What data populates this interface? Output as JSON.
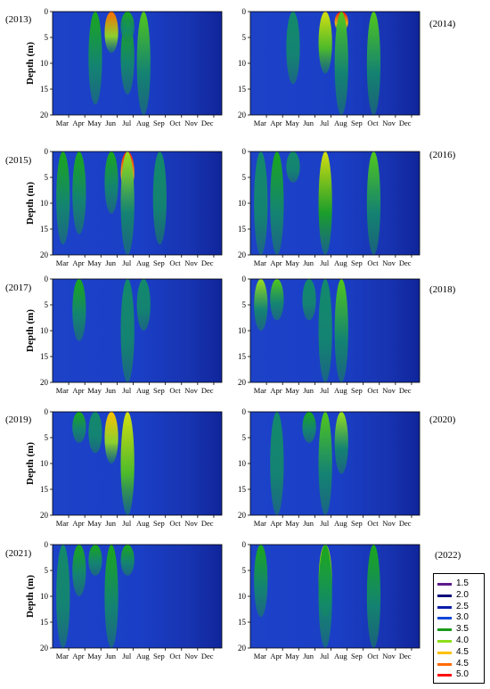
{
  "chart_data": {
    "type": "heatmap",
    "y_label": "Depth (m)",
    "months": [
      "Mar",
      "Apr",
      "May",
      "Jun",
      "Jul",
      "Aug",
      "Sep",
      "Oct",
      "Nov",
      "Dec"
    ],
    "depth_ticks": [
      0,
      5,
      10,
      15,
      20
    ],
    "depth_range": [
      0,
      20
    ],
    "colorbar": [
      {
        "value": "1.5",
        "color": "#5a1b8a"
      },
      {
        "value": "2.0",
        "color": "#0a0a7a"
      },
      {
        "value": "2.5",
        "color": "#0a1ea8"
      },
      {
        "value": "3.0",
        "color": "#1046d8"
      },
      {
        "value": "3.5",
        "color": "#1a9a1a"
      },
      {
        "value": "4.0",
        "color": "#8ede1a"
      },
      {
        "value": "4.5",
        "color": "#ffc000"
      },
      {
        "value": "4.5",
        "color": "#ff6a00"
      },
      {
        "value": "5.0",
        "color": "#ff1010"
      }
    ],
    "panels": [
      {
        "year": "(2013)",
        "hotspots": [
          {
            "month": "Jun",
            "from": 0,
            "to": 8,
            "peak": 4.6
          },
          {
            "month": "May",
            "from": 0,
            "to": 18,
            "peak": 3.6
          },
          {
            "month": "Jul",
            "from": 2,
            "to": 16,
            "peak": 3.6
          },
          {
            "month": "Aug",
            "from": 0,
            "to": 20,
            "peak": 3.8
          },
          {
            "month": "Jul",
            "from": 0,
            "to": 6,
            "peak": 3.5
          }
        ]
      },
      {
        "year": "(2014)",
        "hotspots": [
          {
            "month": "Jul",
            "from": 0,
            "to": 12,
            "peak": 4.3
          },
          {
            "month": "Aug",
            "from": 0,
            "to": 4,
            "peak": 5.0
          },
          {
            "month": "Aug",
            "from": 0,
            "to": 20,
            "peak": 3.7
          },
          {
            "month": "Oct",
            "from": 0,
            "to": 20,
            "peak": 3.8
          },
          {
            "month": "May",
            "from": 0,
            "to": 14,
            "peak": 3.4
          }
        ]
      },
      {
        "year": "(2015)",
        "hotspots": [
          {
            "month": "Jul",
            "from": 0,
            "to": 8,
            "peak": 5.0
          },
          {
            "month": "Jul",
            "from": 0,
            "to": 20,
            "peak": 4.0
          },
          {
            "month": "Mar",
            "from": 0,
            "to": 18,
            "peak": 3.6
          },
          {
            "month": "Apr",
            "from": 0,
            "to": 16,
            "peak": 3.5
          },
          {
            "month": "Jun",
            "from": 0,
            "to": 12,
            "peak": 3.6
          },
          {
            "month": "Sep",
            "from": 0,
            "to": 18,
            "peak": 3.4
          }
        ]
      },
      {
        "year": "(2016)",
        "hotspots": [
          {
            "month": "Jul",
            "from": 0,
            "to": 20,
            "peak": 4.1
          },
          {
            "month": "Oct",
            "from": 0,
            "to": 20,
            "peak": 3.8
          },
          {
            "month": "Apr",
            "from": 0,
            "to": 20,
            "peak": 3.5
          },
          {
            "month": "Mar",
            "from": 0,
            "to": 20,
            "peak": 3.4
          },
          {
            "month": "May",
            "from": 0,
            "to": 6,
            "peak": 3.4
          }
        ]
      },
      {
        "year": "(2017)",
        "hotspots": [
          {
            "month": "Apr",
            "from": 0,
            "to": 12,
            "peak": 3.6
          },
          {
            "month": "Jul",
            "from": 0,
            "to": 20,
            "peak": 3.3
          },
          {
            "month": "Aug",
            "from": 0,
            "to": 10,
            "peak": 3.4
          }
        ]
      },
      {
        "year": "(2018)",
        "hotspots": [
          {
            "month": "Mar",
            "from": 0,
            "to": 10,
            "peak": 3.9
          },
          {
            "month": "Apr",
            "from": 0,
            "to": 8,
            "peak": 3.8
          },
          {
            "month": "Aug",
            "from": 0,
            "to": 20,
            "peak": 3.8
          },
          {
            "month": "Jul",
            "from": 0,
            "to": 20,
            "peak": 3.4
          },
          {
            "month": "Jun",
            "from": 0,
            "to": 8,
            "peak": 3.4
          }
        ]
      },
      {
        "year": "(2019)",
        "hotspots": [
          {
            "month": "Jun",
            "from": 0,
            "to": 10,
            "peak": 4.5
          },
          {
            "month": "Jul",
            "from": 0,
            "to": 20,
            "peak": 4.3
          },
          {
            "month": "Apr",
            "from": 0,
            "to": 6,
            "peak": 3.5
          },
          {
            "month": "May",
            "from": 0,
            "to": 8,
            "peak": 3.4
          }
        ]
      },
      {
        "year": "(2020)",
        "hotspots": [
          {
            "month": "Jul",
            "from": 0,
            "to": 20,
            "peak": 3.7
          },
          {
            "month": "Aug",
            "from": 0,
            "to": 12,
            "peak": 4.0
          },
          {
            "month": "Jun",
            "from": 0,
            "to": 6,
            "peak": 3.5
          },
          {
            "month": "Apr",
            "from": 0,
            "to": 20,
            "peak": 3.4
          }
        ]
      },
      {
        "year": "(2021)",
        "hotspots": [
          {
            "month": "Mar",
            "from": 0,
            "to": 20,
            "peak": 3.4
          },
          {
            "month": "Jun",
            "from": 0,
            "to": 20,
            "peak": 3.6
          },
          {
            "month": "Apr",
            "from": 0,
            "to": 10,
            "peak": 3.5
          },
          {
            "month": "Jul",
            "from": 0,
            "to": 6,
            "peak": 3.6
          },
          {
            "month": "May",
            "from": 0,
            "to": 6,
            "peak": 3.5
          }
        ]
      },
      {
        "year": "(2022)",
        "hotspots": [
          {
            "month": "Jul",
            "from": 0,
            "to": 14,
            "peak": 4.1
          },
          {
            "month": "Jul",
            "from": 0,
            "to": 20,
            "peak": 3.6
          },
          {
            "month": "Oct",
            "from": 0,
            "to": 20,
            "peak": 3.6
          },
          {
            "month": "Mar",
            "from": 0,
            "to": 14,
            "peak": 3.5
          }
        ]
      }
    ]
  }
}
